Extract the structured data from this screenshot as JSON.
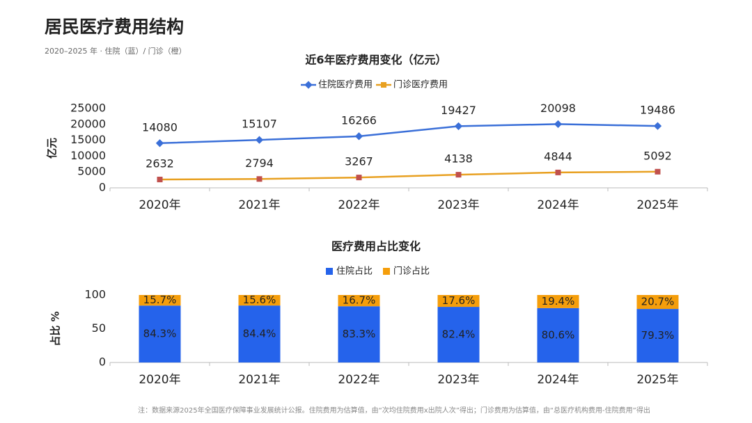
{
  "header": {
    "title": "居民医疗费用结构",
    "subtitle": "2020–2025 年 · 住院（蓝）/ 门诊（橙）"
  },
  "footnote": "注：数据来源2025年全国医疗保障事业发展统计公报。住院费用为估算值，由“次均住院费用x出院人次”得出；门诊费用为估算值，由“总医疗机构费用-住院费用”得出",
  "chart_data": [
    {
      "type": "line",
      "title": "近6年医疗费用变化（亿元）",
      "y_label": "亿元",
      "legend": "top",
      "categories": [
        "2020年",
        "2021年",
        "2022年",
        "2023年",
        "2024年",
        "2025年"
      ],
      "series": [
        {
          "name": "住院医疗费用",
          "color": "#3a6fd8",
          "values": [
            14080,
            15107,
            16266,
            19427,
            20098,
            19486
          ]
        },
        {
          "name": "门诊医疗费用",
          "color": "#e8a020",
          "values": [
            2632,
            2794,
            3267,
            4138,
            4844,
            5092
          ]
        }
      ],
      "ylim": [
        0,
        25000
      ],
      "yticks": [
        0,
        5000,
        10000,
        15000,
        20000,
        25000
      ]
    },
    {
      "type": "stacked_bar",
      "title": "医疗费用占比变化",
      "y_label": "占比 %",
      "legend": "top",
      "categories": [
        "2020年",
        "2021年",
        "2022年",
        "2023年",
        "2024年",
        "2025年"
      ],
      "series": [
        {
          "name": "住院占比",
          "color": "#2563eb",
          "values": [
            84.3,
            84.4,
            83.3,
            82.4,
            80.6,
            79.3
          ],
          "value_labels": [
            "84.3%",
            "84.4%",
            "83.3%",
            "82.4%",
            "80.6%",
            "79.3%"
          ]
        },
        {
          "name": "门诊占比",
          "color": "#f59e0b",
          "values": [
            15.7,
            15.6,
            16.7,
            17.6,
            19.4,
            20.7
          ],
          "value_labels": [
            "15.7%",
            "15.6%",
            "16.7%",
            "17.6%",
            "19.4%",
            "20.7%"
          ]
        }
      ],
      "ylim": [
        0,
        100
      ],
      "yticks": [
        0,
        50,
        100
      ]
    }
  ]
}
